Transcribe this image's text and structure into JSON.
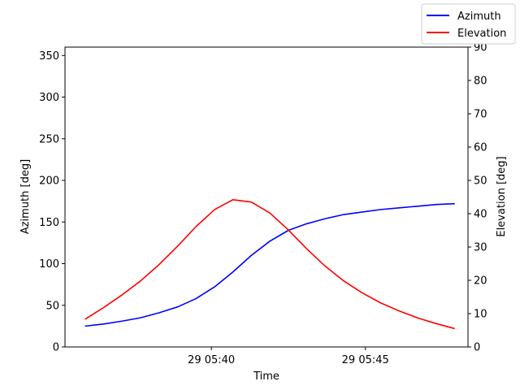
{
  "chart_data": {
    "type": "line",
    "xlabel": "Time",
    "ylabel_left": "Azimuth [deg]",
    "ylabel_right": "Elevation [deg]",
    "x_unit": "minutes past 05:00 on day 29",
    "xlim": [
      35.25,
      48.33
    ],
    "ylim_left": [
      0,
      360
    ],
    "ylim_right": [
      0,
      90
    ],
    "x_ticks": [
      {
        "value": 40,
        "label": "29 05:40"
      },
      {
        "value": 45,
        "label": "29 05:45"
      }
    ],
    "y_ticks_left": [
      0,
      50,
      100,
      150,
      200,
      250,
      300,
      350
    ],
    "y_ticks_right": [
      0,
      10,
      20,
      30,
      40,
      50,
      60,
      70,
      80,
      90
    ],
    "grid": false,
    "legend_position": "top-right",
    "x": [
      35.9,
      36.5,
      37.1,
      37.7,
      38.3,
      38.9,
      39.5,
      40.1,
      40.7,
      41.3,
      41.9,
      42.5,
      43.1,
      43.7,
      44.3,
      44.9,
      45.5,
      46.1,
      46.7,
      47.3,
      47.9
    ],
    "series": [
      {
        "name": "Azimuth",
        "axis": "left",
        "color": "#0000ff",
        "values": [
          25,
          27.5,
          31,
          35,
          41,
          48,
          58,
          72,
          90,
          110,
          127,
          140,
          148,
          154,
          159,
          162,
          165,
          167,
          169,
          171,
          172
        ]
      },
      {
        "name": "Elevation",
        "axis": "right",
        "color": "#ff0000",
        "values": [
          8.3,
          11.8,
          15.6,
          19.8,
          24.7,
          30.2,
          36.1,
          41.2,
          44.2,
          43.5,
          40.2,
          35.1,
          29.4,
          24.2,
          19.8,
          16.2,
          13.2,
          10.8,
          8.7,
          7,
          5.5
        ]
      }
    ]
  }
}
